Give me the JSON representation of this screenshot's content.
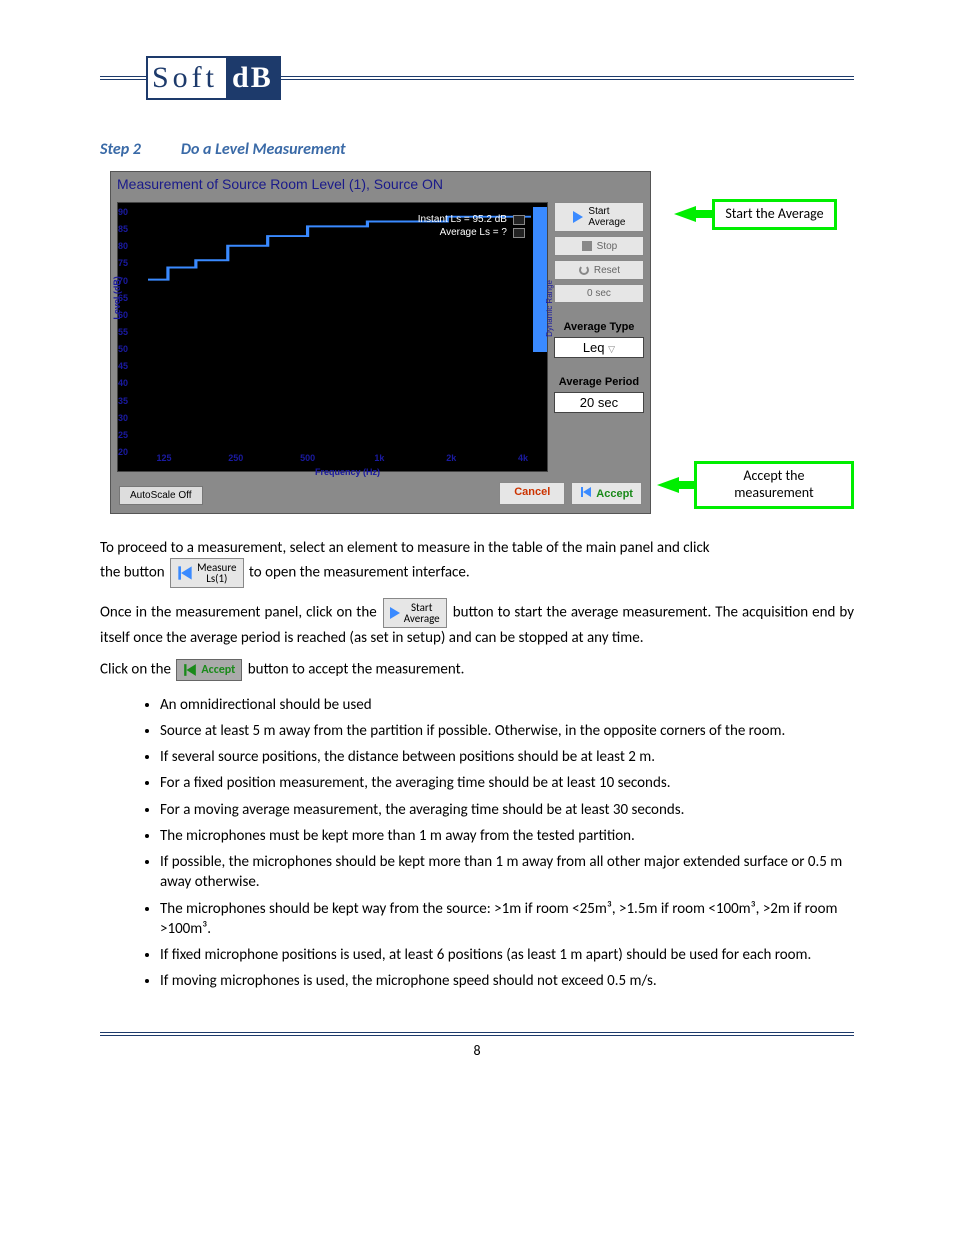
{
  "logo": {
    "left": "Soft",
    "right": "dB"
  },
  "step": {
    "label": "Step 2",
    "title": "Do a Level Measurement"
  },
  "screenshot": {
    "title": "Measurement of Source Room Level (1), Source ON",
    "chart": {
      "type": "line",
      "ylabel": "Level (dB)",
      "xlabel": "Frequency (Hz)",
      "background_color": "#000000",
      "axis_text_color": "#1a1aa0",
      "line_color": "#3a8aff",
      "ylim": [
        20,
        90
      ],
      "ytick_step": 5,
      "yticks": [
        90,
        85,
        80,
        75,
        70,
        65,
        60,
        55,
        50,
        45,
        40,
        35,
        30,
        25,
        20
      ],
      "xticks": [
        "125",
        "250",
        "500",
        "1k",
        "2k",
        "4k"
      ],
      "xtick_positions_pct": [
        4,
        22,
        40,
        58,
        76,
        94
      ],
      "dynamic_range_label": "Dynamic Range",
      "legend": {
        "instant": "Instant Ls  =   95.2 dB",
        "average": "Average Ls  =   ?"
      },
      "trace_points": [
        [
          0.0,
          0.3
        ],
        [
          0.05,
          0.3
        ],
        [
          0.05,
          0.25
        ],
        [
          0.12,
          0.25
        ],
        [
          0.12,
          0.22
        ],
        [
          0.2,
          0.22
        ],
        [
          0.2,
          0.16
        ],
        [
          0.3,
          0.16
        ],
        [
          0.3,
          0.12
        ],
        [
          0.4,
          0.12
        ],
        [
          0.4,
          0.08
        ],
        [
          0.55,
          0.08
        ],
        [
          0.55,
          0.06
        ],
        [
          0.75,
          0.06
        ],
        [
          0.75,
          0.04
        ],
        [
          0.96,
          0.04
        ]
      ]
    },
    "autoscale": "AutoScale Off",
    "controls": {
      "start_avg": "Start\nAverage",
      "stop": "Stop",
      "reset": "Reset",
      "timer": "0 sec",
      "avg_type_label": "Average Type",
      "avg_type_value": "Leq",
      "avg_period_label": "Average Period",
      "avg_period_value": "20 sec"
    },
    "footer": {
      "cancel": "Cancel",
      "accept": "Accept"
    }
  },
  "callouts": {
    "start": "Start the Average",
    "accept": "Accept the measurement"
  },
  "text": {
    "p1a": "To proceed to a measurement, select an element to measure in the table of the main panel and click",
    "p1b": "the button",
    "p1c": "to open the measurement interface.",
    "measure_btn_l1": "Measure",
    "measure_btn_l2": "Ls(1)",
    "p2a": "Once in the measurement panel, click on the",
    "p2b": "button to start the average measurement. The acquisition end by itself once the average period is reached (as set in setup) and can be stopped at any time.",
    "start_btn_l1": "Start",
    "start_btn_l2": "Average",
    "p3a": "Click on the",
    "p3b": "button to accept the measurement.",
    "accept_inline": "Accept"
  },
  "bullets": [
    "An omnidirectional should be used",
    "Source at least 5 m away from the partition if possible. Otherwise, in the opposite corners of the room.",
    "If several source positions, the distance between positions should be at least 2 m.",
    "For a fixed position measurement, the averaging time should be at least 10 seconds.",
    "For a moving average measurement, the averaging time should be at least 30 seconds.",
    "The microphones must be kept more than 1 m away from the tested partition.",
    "If possible, the microphones should be kept more than 1 m away from all other major extended surface or 0.5 m away otherwise.",
    "The microphones should be kept way from the source: >1m if room <25m³, >1.5m if room <100m³, >2m if room >100m³.",
    "If fixed microphone positions is used, at least 6 positions (as least 1 m apart) should be used for each room.",
    "If moving microphones is used, the microphone speed should not exceed 0.5 m/s."
  ],
  "page_number": "8",
  "colors": {
    "brand": "#1d3a6b",
    "step_heading": "#3a6aa7",
    "callout_green": "#00ee00",
    "accept_green": "#1a8a1a",
    "cancel_red": "#cc3300"
  }
}
